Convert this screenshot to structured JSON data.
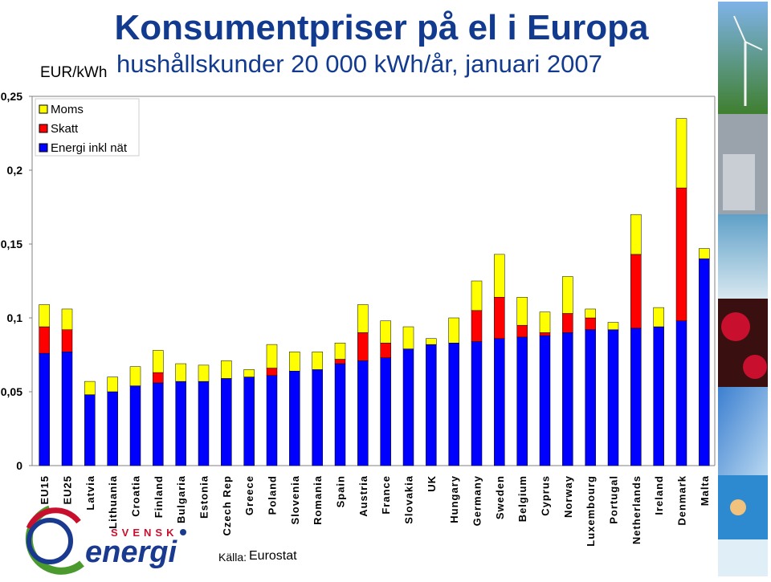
{
  "header": {
    "title": "Konsumentpriser på el i Europa",
    "subtitle": "hushållskunder 20 000 kWh/år, januari 2007",
    "unit": "EUR/kWh"
  },
  "source": {
    "label": "Källa:",
    "value": "Eurostat"
  },
  "logo": {
    "text_top": "SVENSK",
    "text_main": "energi"
  },
  "colors": {
    "moms": "#ffff00",
    "skatt": "#ff0000",
    "energi": "#0000ff"
  },
  "chart_data": {
    "type": "bar",
    "stacked": true,
    "title": "Konsumentpriser på el i Europa",
    "subtitle": "hushållskunder 20 000 kWh/år, januari 2007",
    "ylabel": "EUR/kWh",
    "ylim": [
      0,
      0.25
    ],
    "yticks": [
      0,
      0.05,
      0.1,
      0.15,
      0.2,
      0.25
    ],
    "ytick_labels": [
      "0",
      "0,05",
      "0,1",
      "0,15",
      "0,2",
      "0,25"
    ],
    "grid": false,
    "legend_position": "top-left",
    "categories": [
      "EU15",
      "EU25",
      "Latvia",
      "Lithuania",
      "Croatia",
      "Finland",
      "Bulgaria",
      "Estonia",
      "Czech Rep",
      "Greece",
      "Poland",
      "Slovenia",
      "Romania",
      "Spain",
      "Austria",
      "France",
      "Slovakia",
      "UK",
      "Hungary",
      "Germany",
      "Sweden",
      "Belgium",
      "Cyprus",
      "Norway",
      "Luxembourg",
      "Portugal",
      "Netherlands",
      "Ireland",
      "Denmark",
      "Malta"
    ],
    "series": [
      {
        "name": "Energi inkl nät",
        "color": "#0000ff",
        "values": [
          0.076,
          0.077,
          0.048,
          0.05,
          0.054,
          0.056,
          0.057,
          0.057,
          0.059,
          0.06,
          0.061,
          0.064,
          0.065,
          0.069,
          0.071,
          0.073,
          0.079,
          0.082,
          0.083,
          0.084,
          0.086,
          0.087,
          0.088,
          0.09,
          0.092,
          0.092,
          0.093,
          0.094,
          0.098,
          0.14
        ]
      },
      {
        "name": "Skatt",
        "color": "#ff0000",
        "values": [
          0.018,
          0.015,
          0.0,
          0.0,
          0.0,
          0.007,
          0.0,
          0.0,
          0.0,
          0.0,
          0.005,
          0.0,
          0.0,
          0.003,
          0.019,
          0.01,
          0.0,
          0.0,
          0.0,
          0.021,
          0.028,
          0.008,
          0.002,
          0.013,
          0.008,
          0.0,
          0.05,
          0.0,
          0.09,
          0.0
        ]
      },
      {
        "name": "Moms",
        "color": "#ffff00",
        "values": [
          0.015,
          0.014,
          0.009,
          0.01,
          0.013,
          0.015,
          0.012,
          0.011,
          0.012,
          0.005,
          0.016,
          0.013,
          0.012,
          0.011,
          0.019,
          0.015,
          0.015,
          0.004,
          0.017,
          0.02,
          0.029,
          0.019,
          0.014,
          0.025,
          0.006,
          0.005,
          0.027,
          0.013,
          0.047,
          0.007
        ]
      }
    ],
    "legend": [
      "Moms",
      "Skatt",
      "Energi inkl nät"
    ]
  }
}
